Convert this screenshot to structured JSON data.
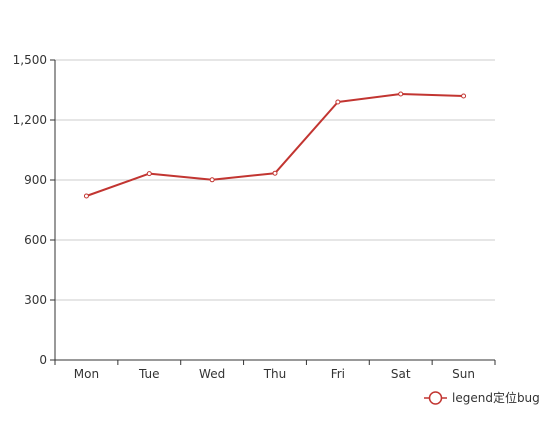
{
  "chart_data": {
    "type": "line",
    "title": "",
    "xlabel": "",
    "ylabel": "",
    "categories": [
      "Mon",
      "Tue",
      "Wed",
      "Thu",
      "Fri",
      "Sat",
      "Sun"
    ],
    "y_tick_labels": [
      "0",
      "300",
      "600",
      "900",
      "1,200",
      "1,500"
    ],
    "ylim": [
      0,
      1500
    ],
    "grid": true,
    "legend_position": "bottom-right",
    "series": [
      {
        "name": "legend定位bug",
        "values": [
          820,
          932,
          901,
          934,
          1290,
          1330,
          1320
        ],
        "color": "#c23531"
      }
    ]
  }
}
